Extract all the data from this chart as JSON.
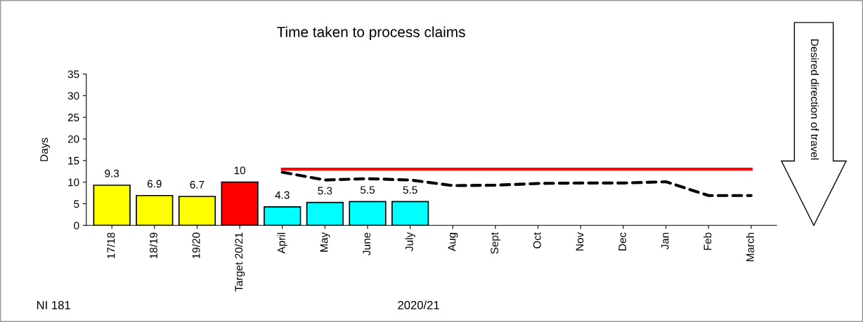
{
  "chart_data": {
    "type": "bar",
    "title": "Time taken to process claims",
    "ylabel": "Days",
    "xlabel": "2020/21",
    "categories": [
      "17/18",
      "18/19",
      "19/20",
      "Target 20/21",
      "April",
      "May",
      "June",
      "July",
      "Aug",
      "Sept",
      "Oct",
      "Nov",
      "Dec",
      "Jan",
      "Feb",
      "March"
    ],
    "series": [
      {
        "colors": [
          "#ffff00",
          "#ffff00",
          "#ffff00",
          "#ff0000",
          "#00ffff",
          "#00ffff",
          "#00ffff",
          "#00ffff",
          null,
          null,
          null,
          null,
          null,
          null,
          null,
          null
        ],
        "values": [
          9.3,
          6.9,
          6.7,
          10,
          4.3,
          5.3,
          5.5,
          5.5,
          null,
          null,
          null,
          null,
          null,
          null,
          null,
          null
        ],
        "data_labels": true
      },
      {
        "type": "line",
        "color": "#ff0000",
        "line_style": "solid",
        "values": [
          null,
          null,
          null,
          null,
          13,
          13,
          13,
          13,
          13,
          13,
          13,
          13,
          13,
          13,
          13,
          13
        ]
      },
      {
        "type": "line",
        "color": "#000000",
        "line_style": "dashed",
        "values": [
          null,
          null,
          null,
          null,
          12.3,
          10.5,
          10.8,
          10.5,
          9.2,
          9.3,
          9.7,
          9.8,
          9.8,
          10.1,
          6.9,
          6.9
        ]
      }
    ],
    "ylim": [
      0,
      35
    ],
    "yticks": [
      0,
      5,
      10,
      15,
      20,
      25,
      30,
      35
    ],
    "grid": false,
    "legend": false,
    "annotations": [
      "NI 181",
      "Desired direction of travel"
    ]
  }
}
